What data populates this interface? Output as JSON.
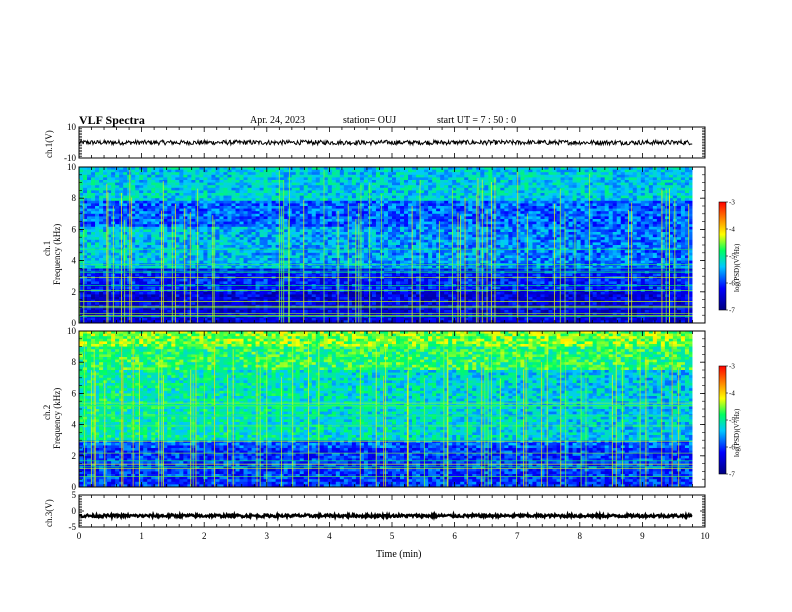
{
  "header": {
    "title": "VLF Spectra",
    "date": "Apr. 24, 2023",
    "station": "station= OUJ",
    "start": "start  UT =   7 : 50 : 0"
  },
  "chart_data": [
    {
      "type": "line",
      "name": "ch1-waveform",
      "ylabel": "ch.1(V)",
      "ylim": [
        -10,
        10
      ],
      "yticks": [
        "10",
        "-10"
      ],
      "x": [
        0,
        9.8
      ],
      "baseline": 0,
      "description_of_trace": "noisy waveform near 0 V"
    },
    {
      "type": "heatmap",
      "name": "ch1-spectrogram",
      "ylabel": "ch.1\nFrequency (kHz)",
      "ylim": [
        0,
        10
      ],
      "yticks": [
        "0",
        "2",
        "4",
        "6",
        "8",
        "10"
      ],
      "xlim": [
        0,
        10
      ],
      "colorbar": {
        "label": "log(PSD)(V²/Hz)",
        "ticks": [
          "-3",
          "-4",
          "-5",
          "-6",
          "-7"
        ],
        "range": [
          -7,
          -3
        ]
      }
    },
    {
      "type": "heatmap",
      "name": "ch2-spectrogram",
      "ylabel": "ch.2\nFrequency (kHz)",
      "ylim": [
        0,
        10
      ],
      "yticks": [
        "0",
        "2",
        "4",
        "6",
        "8",
        "10"
      ],
      "xlim": [
        0,
        10
      ],
      "colorbar": {
        "label": "log(PSD)(V²/Hz)",
        "ticks": [
          "-3",
          "-4",
          "-5",
          "-6",
          "-7"
        ],
        "range": [
          -7,
          -3
        ]
      }
    },
    {
      "type": "line",
      "name": "ch3-waveform",
      "ylabel": "ch.3(V)",
      "ylim": [
        -5,
        5
      ],
      "yticks": [
        "5",
        "0",
        "-5"
      ],
      "x": [
        0,
        9.8
      ],
      "baseline": -1.5
    }
  ],
  "xaxis": {
    "label": "Time  (min)",
    "ticks": [
      "0",
      "1",
      "2",
      "3",
      "4",
      "5",
      "6",
      "7",
      "8",
      "9",
      "10"
    ],
    "range": [
      0,
      10
    ]
  },
  "labels": {
    "ch1_v": "ch.1(V)",
    "ch1_freq_a": "ch.1",
    "ch1_freq_b": "Frequency  (kHz)",
    "ch2_freq_a": "ch.2",
    "ch2_freq_b": "Frequency  (kHz)",
    "ch3_v": "ch.3(V)",
    "cb": "log(PSD)(V²/Hz)"
  },
  "colors": {
    "low": "#0000a0",
    "mid": "#00e0ff",
    "high": "#ffff00",
    "max": "#ff0000"
  }
}
